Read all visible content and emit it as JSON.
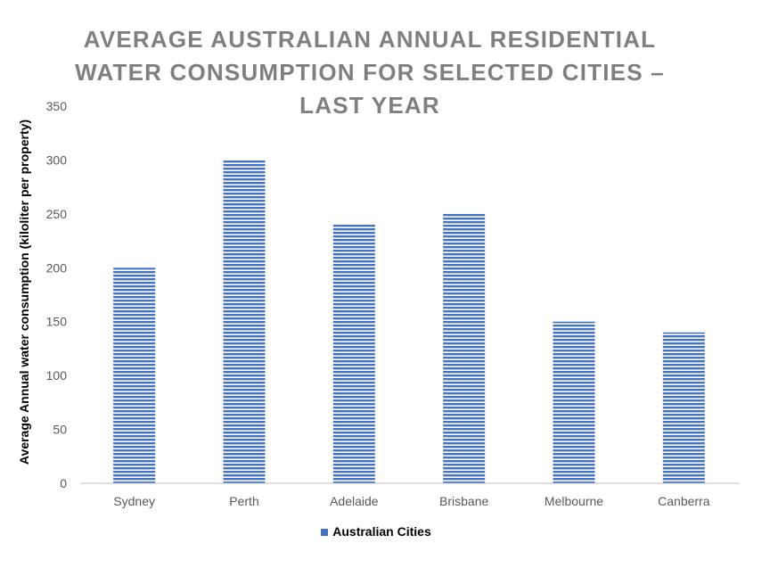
{
  "chart_data": {
    "type": "bar",
    "title_lines": [
      "AVERAGE AUSTRALIAN ANNUAL RESIDENTIAL",
      "WATER CONSUMPTION FOR SELECTED CITIES –",
      "LAST YEAR"
    ],
    "categories": [
      "Sydney",
      "Perth",
      "Adelaide",
      "Brisbane",
      "Melbourne",
      "Canberra"
    ],
    "series": [
      {
        "name": "Australian Cities",
        "values": [
          200,
          300,
          240,
          250,
          150,
          140
        ]
      }
    ],
    "ylabel": "Average Annual water consumption (kiloliter per property)",
    "xlabel": "",
    "ylim": [
      0,
      350
    ],
    "yticks": [
      0,
      50,
      100,
      150,
      200,
      250,
      300,
      350
    ],
    "grid": false,
    "legend_position": "bottom",
    "bar_color": "#4472c4",
    "bar_pattern": "horizontal-stripes"
  }
}
